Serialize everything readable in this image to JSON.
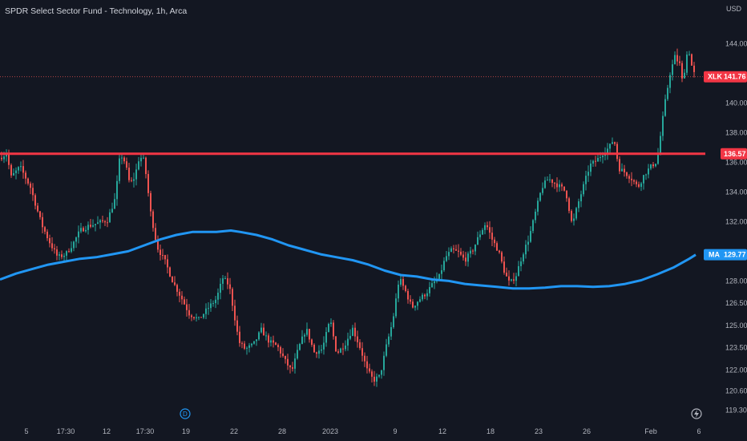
{
  "header": {
    "title": "SPDR Select Sector Fund - Technology, 1h, Arca",
    "currency": "USD"
  },
  "colors": {
    "up": "#26a69a",
    "down": "#ef5350",
    "ma": "#2196f3",
    "level": "#f23645",
    "bg": "#131722",
    "axis_text": "#b2b5be"
  },
  "tags": {
    "price": {
      "label": "XLK",
      "value": "141.76"
    },
    "level": {
      "value": "136.57"
    },
    "ma": {
      "label": "MA",
      "value": "129.77"
    }
  },
  "markers": {
    "dividend": "D",
    "earnings": "lightning-icon"
  },
  "chart_data": {
    "type": "candlestick",
    "title": "SPDR Select Sector Fund - Technology, 1h, Arca",
    "ylabel": "USD",
    "ylim": [
      119.0,
      146.5
    ],
    "y_ticks": [
      "144.00",
      "140.00",
      "138.00",
      "136.00",
      "134.00",
      "132.00",
      "128.00",
      "126.50",
      "125.00",
      "123.50",
      "122.00",
      "120.60",
      "119.30"
    ],
    "x_ticks": [
      "5",
      "17:30",
      "12",
      "17:30",
      "19",
      "22",
      "28",
      "2023",
      "9",
      "12",
      "18",
      "23",
      "26",
      "Feb",
      "6"
    ],
    "last_price": 141.76,
    "horizontal_level": 136.57,
    "moving_average_last": 129.77,
    "close_path": [
      [
        0,
        136.3
      ],
      [
        8,
        136.6
      ],
      [
        14,
        135.0
      ],
      [
        25,
        135.7
      ],
      [
        38,
        134.3
      ],
      [
        52,
        131.8
      ],
      [
        62,
        130.6
      ],
      [
        72,
        129.6
      ],
      [
        82,
        129.8
      ],
      [
        92,
        130.6
      ],
      [
        100,
        131.4
      ],
      [
        110,
        131.7
      ],
      [
        122,
        131.9
      ],
      [
        134,
        132.1
      ],
      [
        144,
        133.6
      ],
      [
        150,
        136.6
      ],
      [
        156,
        136.0
      ],
      [
        162,
        134.5
      ],
      [
        168,
        135.0
      ],
      [
        174,
        136.4
      ],
      [
        180,
        136.1
      ],
      [
        188,
        132.6
      ],
      [
        196,
        130.3
      ],
      [
        206,
        129.3
      ],
      [
        216,
        127.9
      ],
      [
        226,
        126.9
      ],
      [
        236,
        125.8
      ],
      [
        248,
        125.4
      ],
      [
        260,
        126.2
      ],
      [
        270,
        126.8
      ],
      [
        278,
        128.2
      ],
      [
        286,
        127.7
      ],
      [
        292,
        125.8
      ],
      [
        298,
        123.9
      ],
      [
        306,
        123.4
      ],
      [
        316,
        123.7
      ],
      [
        326,
        124.7
      ],
      [
        336,
        123.9
      ],
      [
        346,
        123.6
      ],
      [
        356,
        122.6
      ],
      [
        364,
        121.9
      ],
      [
        372,
        123.4
      ],
      [
        382,
        124.8
      ],
      [
        392,
        123.2
      ],
      [
        402,
        123.4
      ],
      [
        412,
        125.4
      ],
      [
        420,
        123.1
      ],
      [
        430,
        123.7
      ],
      [
        440,
        124.8
      ],
      [
        450,
        123.4
      ],
      [
        458,
        122.0
      ],
      [
        466,
        121.3
      ],
      [
        474,
        121.6
      ],
      [
        482,
        123.6
      ],
      [
        490,
        125.3
      ],
      [
        498,
        128.2
      ],
      [
        506,
        127.3
      ],
      [
        514,
        126.2
      ],
      [
        522,
        126.7
      ],
      [
        532,
        127.2
      ],
      [
        540,
        127.8
      ],
      [
        548,
        128.3
      ],
      [
        556,
        129.6
      ],
      [
        564,
        130.1
      ],
      [
        572,
        129.9
      ],
      [
        580,
        129.4
      ],
      [
        590,
        130.1
      ],
      [
        598,
        131.1
      ],
      [
        606,
        131.9
      ],
      [
        614,
        130.8
      ],
      [
        622,
        130.0
      ],
      [
        630,
        128.5
      ],
      [
        636,
        127.8
      ],
      [
        644,
        128.4
      ],
      [
        652,
        129.8
      ],
      [
        660,
        130.9
      ],
      [
        668,
        132.6
      ],
      [
        676,
        134.3
      ],
      [
        684,
        134.9
      ],
      [
        692,
        134.6
      ],
      [
        700,
        134.3
      ],
      [
        706,
        134.0
      ],
      [
        714,
        131.7
      ],
      [
        720,
        133.0
      ],
      [
        728,
        134.4
      ],
      [
        736,
        135.8
      ],
      [
        744,
        136.1
      ],
      [
        752,
        136.6
      ],
      [
        760,
        137.0
      ],
      [
        766,
        137.6
      ],
      [
        772,
        135.6
      ],
      [
        780,
        135.3
      ],
      [
        788,
        134.9
      ],
      [
        796,
        134.3
      ],
      [
        804,
        135.2
      ],
      [
        812,
        135.7
      ],
      [
        820,
        136.1
      ],
      [
        826,
        138.6
      ],
      [
        830,
        140.1
      ],
      [
        836,
        142.0
      ],
      [
        842,
        143.1
      ],
      [
        848,
        142.6
      ],
      [
        852,
        141.2
      ],
      [
        856,
        143.2
      ],
      [
        860,
        143.4
      ],
      [
        864,
        142.2
      ],
      [
        868,
        141.76
      ]
    ],
    "ma_path": [
      [
        0,
        128.1
      ],
      [
        20,
        128.5
      ],
      [
        40,
        128.8
      ],
      [
        60,
        129.1
      ],
      [
        80,
        129.3
      ],
      [
        100,
        129.5
      ],
      [
        120,
        129.6
      ],
      [
        140,
        129.8
      ],
      [
        160,
        130.0
      ],
      [
        180,
        130.4
      ],
      [
        200,
        130.8
      ],
      [
        220,
        131.1
      ],
      [
        240,
        131.3
      ],
      [
        260,
        131.3
      ],
      [
        270,
        131.3
      ],
      [
        288,
        131.4
      ],
      [
        300,
        131.3
      ],
      [
        320,
        131.1
      ],
      [
        340,
        130.8
      ],
      [
        360,
        130.4
      ],
      [
        380,
        130.1
      ],
      [
        400,
        129.8
      ],
      [
        420,
        129.6
      ],
      [
        440,
        129.4
      ],
      [
        460,
        129.1
      ],
      [
        480,
        128.7
      ],
      [
        500,
        128.4
      ],
      [
        520,
        128.3
      ],
      [
        540,
        128.1
      ],
      [
        560,
        128.0
      ],
      [
        580,
        127.8
      ],
      [
        600,
        127.7
      ],
      [
        620,
        127.6
      ],
      [
        640,
        127.5
      ],
      [
        660,
        127.5
      ],
      [
        680,
        127.55
      ],
      [
        700,
        127.65
      ],
      [
        720,
        127.65
      ],
      [
        740,
        127.6
      ],
      [
        760,
        127.65
      ],
      [
        780,
        127.8
      ],
      [
        800,
        128.05
      ],
      [
        820,
        128.45
      ],
      [
        840,
        128.9
      ],
      [
        860,
        129.5
      ],
      [
        868,
        129.77
      ]
    ]
  }
}
